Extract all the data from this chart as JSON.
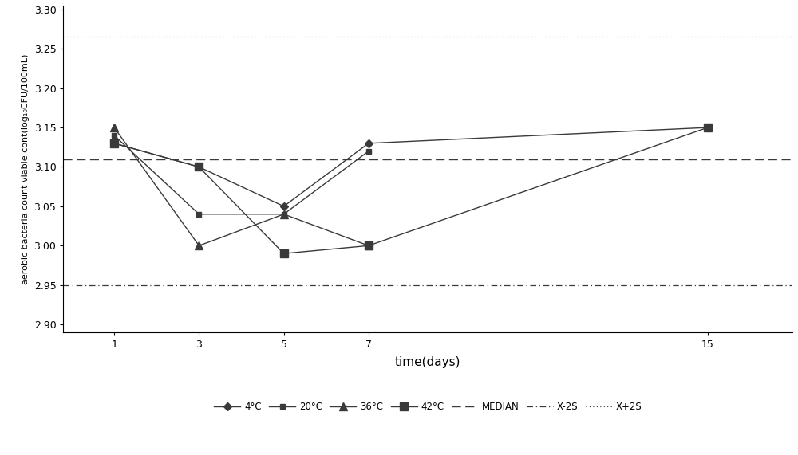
{
  "x": [
    1,
    3,
    5,
    7,
    15
  ],
  "series": {
    "4C": [
      3.13,
      3.1,
      3.05,
      3.13,
      3.15
    ],
    "20C": [
      3.14,
      3.04,
      3.04,
      3.12,
      null
    ],
    "36C": [
      3.15,
      3.0,
      3.04,
      3.0,
      null
    ],
    "42C": [
      3.13,
      3.1,
      2.99,
      3.0,
      3.15
    ]
  },
  "median": 3.11,
  "x_minus_2s": 2.95,
  "x_plus_2s": 3.265,
  "ylim": [
    2.89,
    3.305
  ],
  "yticks": [
    2.9,
    2.95,
    3.0,
    3.05,
    3.1,
    3.15,
    3.2,
    3.25,
    3.3
  ],
  "xticks": [
    1,
    3,
    5,
    7,
    15
  ],
  "xlabel": "time(days)",
  "ylabel": "aerobic bacteria count viable cont(log₁₀CFU/100mL)",
  "line_color": "#3a3a3a",
  "markers": [
    "D",
    "s",
    "^",
    "s"
  ],
  "marker_sizes": [
    5,
    5,
    7,
    7
  ],
  "figsize": [
    10.0,
    5.71
  ],
  "dpi": 100
}
